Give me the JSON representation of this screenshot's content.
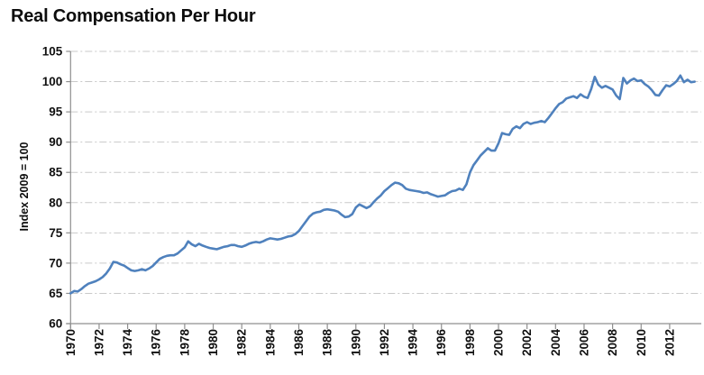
{
  "chart_data": {
    "type": "line",
    "title": "Real Compensation Per Hour",
    "xlabel": "",
    "ylabel": "Index 2009 = 100",
    "legend": "none",
    "grid": "horizontal dash-dot",
    "ylim": [
      60,
      105
    ],
    "y_ticks": [
      "60",
      "65",
      "70",
      "75",
      "80",
      "85",
      "90",
      "95",
      "100",
      "105"
    ],
    "x_tick_labels": [
      "1970",
      "1972",
      "1974",
      "1976",
      "1978",
      "1980",
      "1982",
      "1984",
      "1986",
      "1988",
      "1990",
      "1992",
      "1994",
      "1996",
      "1998",
      "2000",
      "2002",
      "2004",
      "2006",
      "2008",
      "2010",
      "2012"
    ],
    "x_start_year": 1970,
    "x_step_years": 0.25,
    "x_end_year": 2013.75,
    "frequency": "quarterly",
    "colors": {
      "line": "#4F81BD",
      "gridline": "#C9C9C9",
      "axis": "#8F8F8F",
      "text": "#111111"
    },
    "series": [
      {
        "name": "Real Compensation Per Hour",
        "color": "#4F81BD",
        "values": [
          65.0,
          65.4,
          65.3,
          65.7,
          66.2,
          66.6,
          66.8,
          67.0,
          67.3,
          67.7,
          68.3,
          69.1,
          70.2,
          70.1,
          69.8,
          69.6,
          69.2,
          68.8,
          68.7,
          68.8,
          69.0,
          68.8,
          69.1,
          69.5,
          70.1,
          70.7,
          71.0,
          71.2,
          71.3,
          71.3,
          71.6,
          72.1,
          72.6,
          73.6,
          73.1,
          72.8,
          73.2,
          72.9,
          72.7,
          72.5,
          72.4,
          72.3,
          72.5,
          72.7,
          72.8,
          73.0,
          73.0,
          72.8,
          72.7,
          72.9,
          73.2,
          73.4,
          73.5,
          73.4,
          73.6,
          73.9,
          74.1,
          74.0,
          73.9,
          74.0,
          74.2,
          74.4,
          74.5,
          74.8,
          75.3,
          76.1,
          76.9,
          77.7,
          78.2,
          78.4,
          78.5,
          78.8,
          78.9,
          78.8,
          78.7,
          78.5,
          78.0,
          77.6,
          77.7,
          78.1,
          79.2,
          79.7,
          79.4,
          79.1,
          79.4,
          80.1,
          80.7,
          81.2,
          81.9,
          82.4,
          82.9,
          83.3,
          83.2,
          82.9,
          82.3,
          82.1,
          82.0,
          81.9,
          81.8,
          81.6,
          81.7,
          81.4,
          81.2,
          81.0,
          81.1,
          81.2,
          81.6,
          81.9,
          82.0,
          82.3,
          82.1,
          83.0,
          85.0,
          86.2,
          87.0,
          87.8,
          88.4,
          89.0,
          88.6,
          88.6,
          89.8,
          91.5,
          91.3,
          91.2,
          92.2,
          92.6,
          92.3,
          93.0,
          93.3,
          93.0,
          93.2,
          93.3,
          93.5,
          93.3,
          94.0,
          94.8,
          95.6,
          96.3,
          96.6,
          97.2,
          97.4,
          97.6,
          97.3,
          97.9,
          97.5,
          97.3,
          98.8,
          100.8,
          99.5,
          99.0,
          99.3,
          99.0,
          98.7,
          97.7,
          97.1,
          100.6,
          99.7,
          100.2,
          100.5,
          100.1,
          100.2,
          99.6,
          99.2,
          98.6,
          97.8,
          97.7,
          98.6,
          99.4,
          99.2,
          99.6,
          100.1,
          101.0,
          99.9,
          100.3,
          99.9,
          100.0
        ]
      }
    ]
  }
}
